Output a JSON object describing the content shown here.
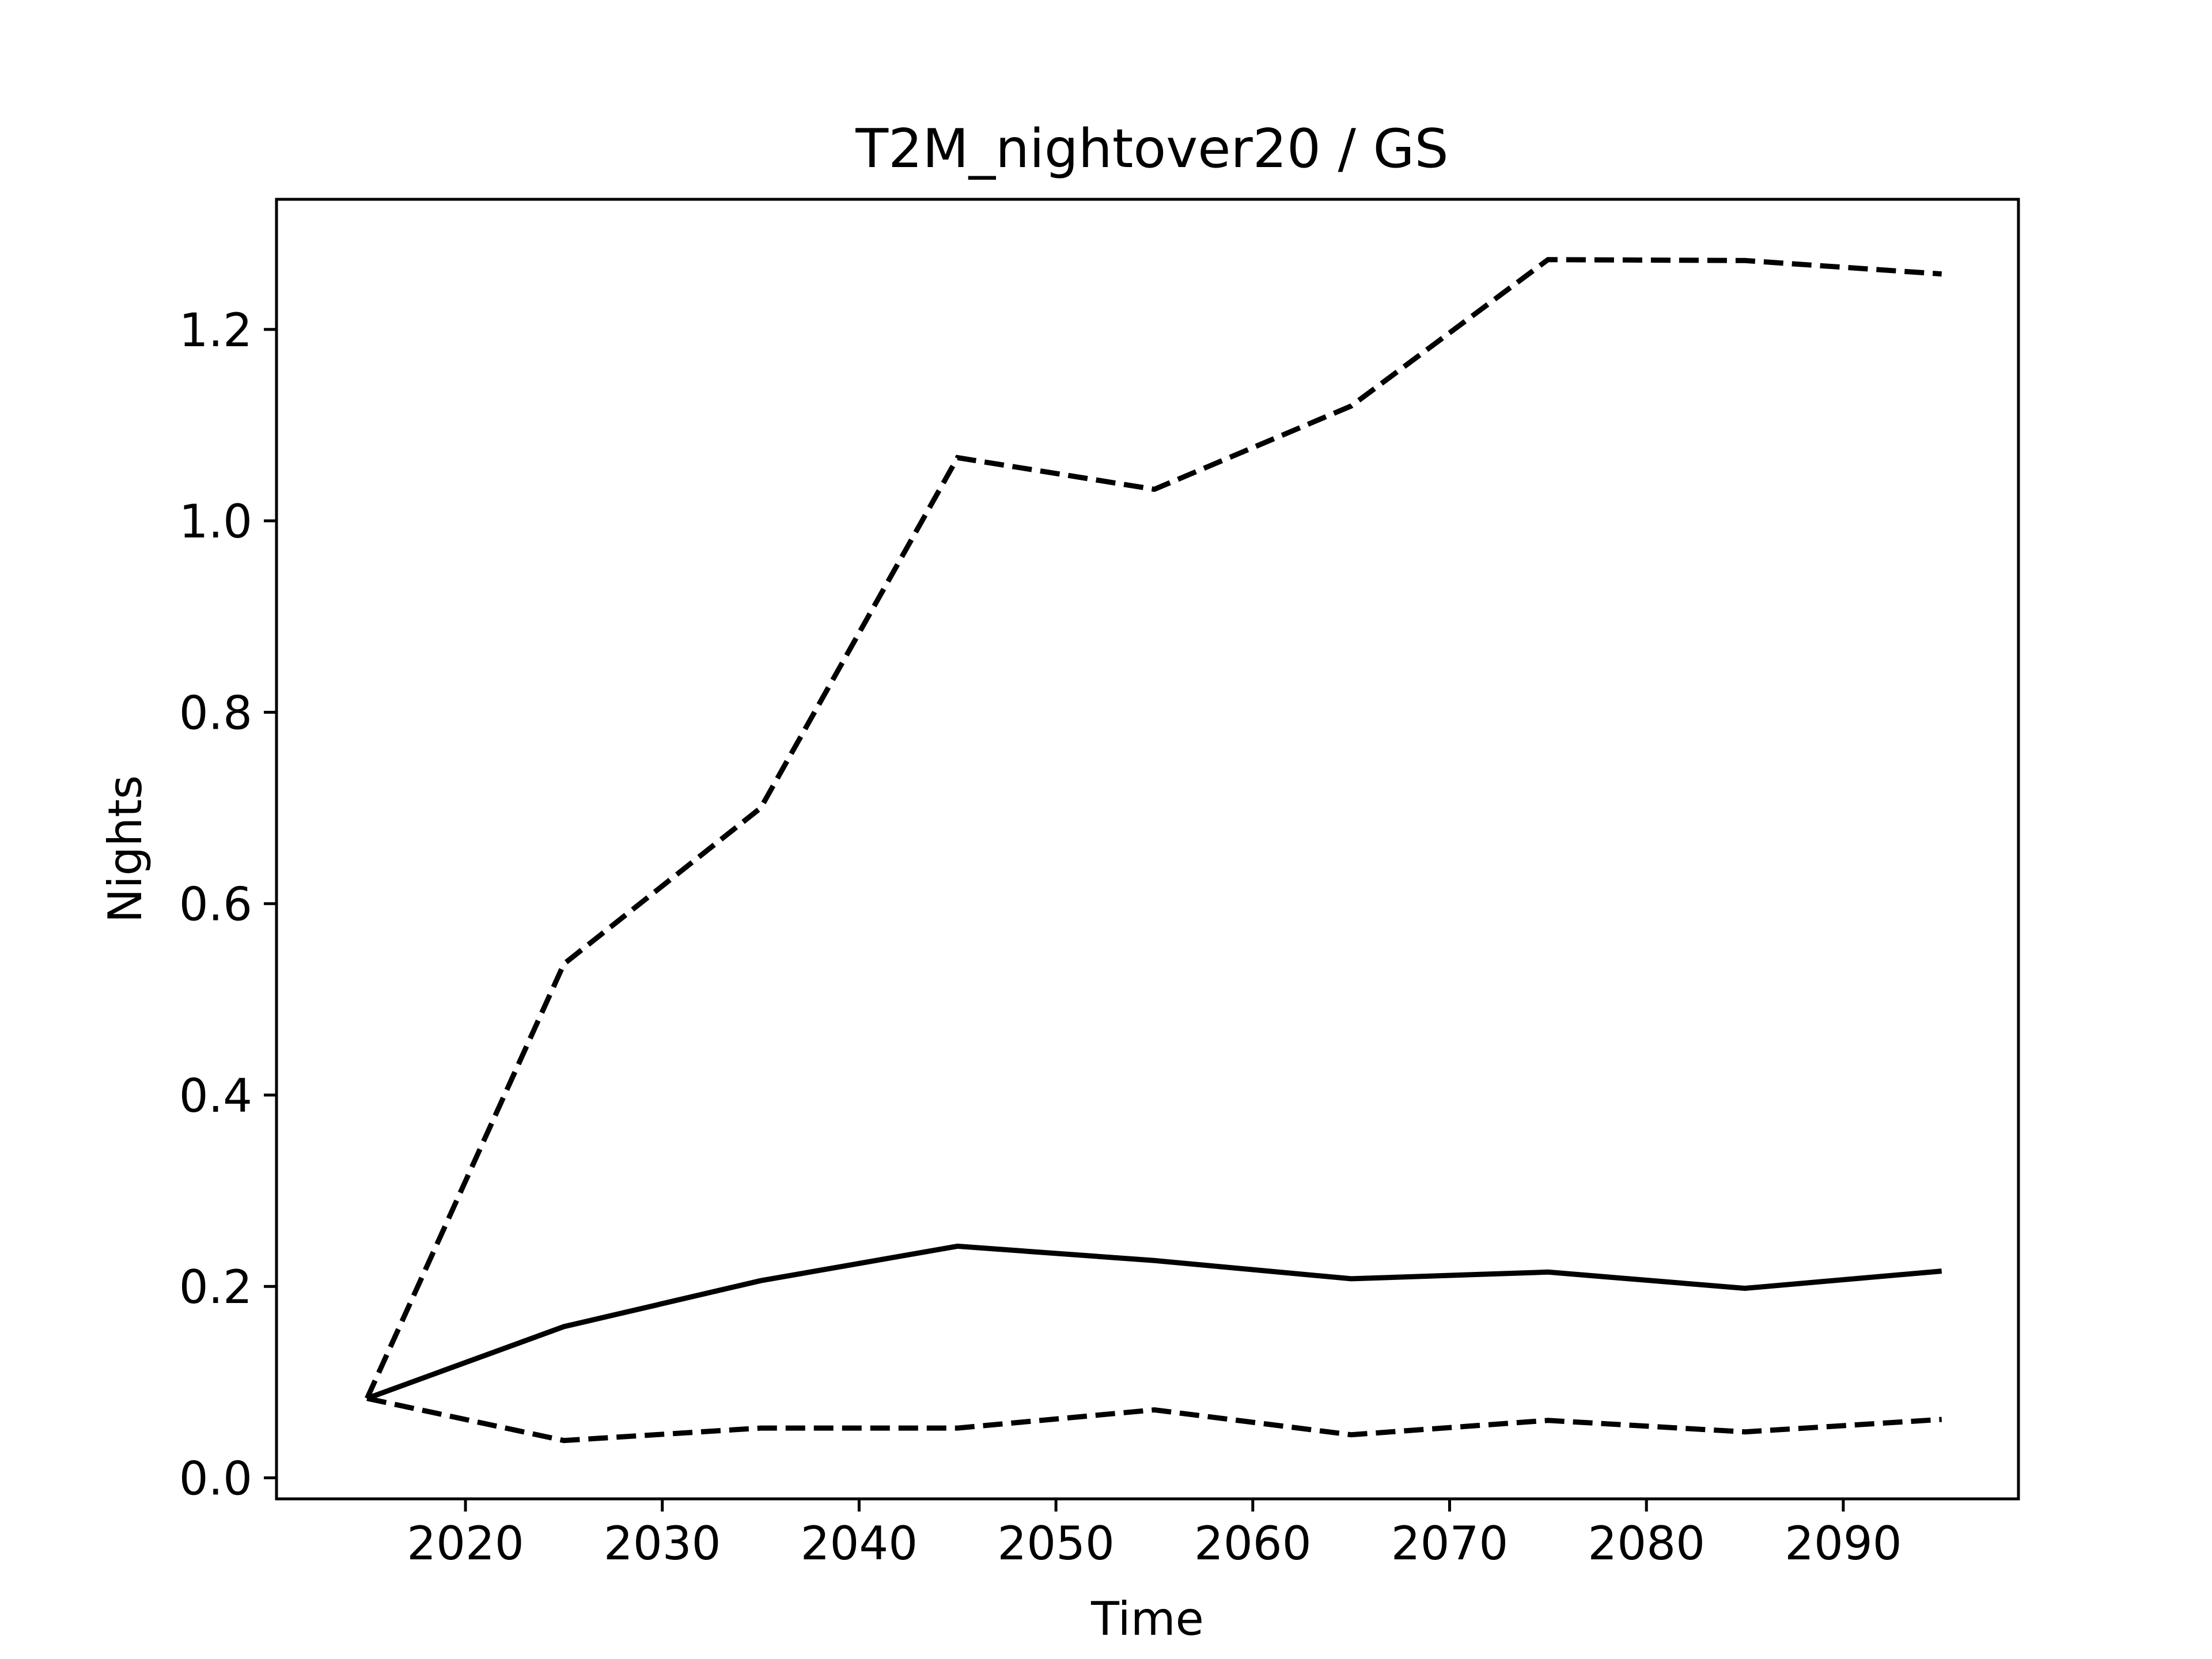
{
  "chart_data": {
    "type": "line",
    "title": "T2M_nightover20 / GS",
    "xlabel": "Time",
    "ylabel": "Nights",
    "xlim": [
      2010.4,
      2098.9
    ],
    "ylim": [
      -0.022,
      1.336
    ],
    "xticks": [
      2020,
      2030,
      2040,
      2050,
      2060,
      2070,
      2080,
      2090
    ],
    "xtick_labels": [
      "2020",
      "2030",
      "2040",
      "2050",
      "2060",
      "2070",
      "2080",
      "2090"
    ],
    "yticks": [
      0.0,
      0.2,
      0.4,
      0.6,
      0.8,
      1.0,
      1.2
    ],
    "ytick_labels": [
      "0.0",
      "0.2",
      "0.4",
      "0.6",
      "0.8",
      "1.0",
      "1.2"
    ],
    "grid": false,
    "line_color": "#000000",
    "x": [
      2015,
      2025,
      2035,
      2045,
      2055,
      2065,
      2075,
      2085,
      2095
    ],
    "series": [
      {
        "style": "dashed",
        "values": [
          0.083,
          0.537,
          0.7,
          1.066,
          1.033,
          1.12,
          1.273,
          1.272,
          1.258
        ]
      },
      {
        "style": "solid",
        "values": [
          0.083,
          0.158,
          0.206,
          0.242,
          0.227,
          0.208,
          0.215,
          0.198,
          0.216
        ]
      },
      {
        "style": "dashed",
        "values": [
          0.083,
          0.039,
          0.052,
          0.052,
          0.071,
          0.045,
          0.06,
          0.048,
          0.061
        ]
      }
    ]
  }
}
